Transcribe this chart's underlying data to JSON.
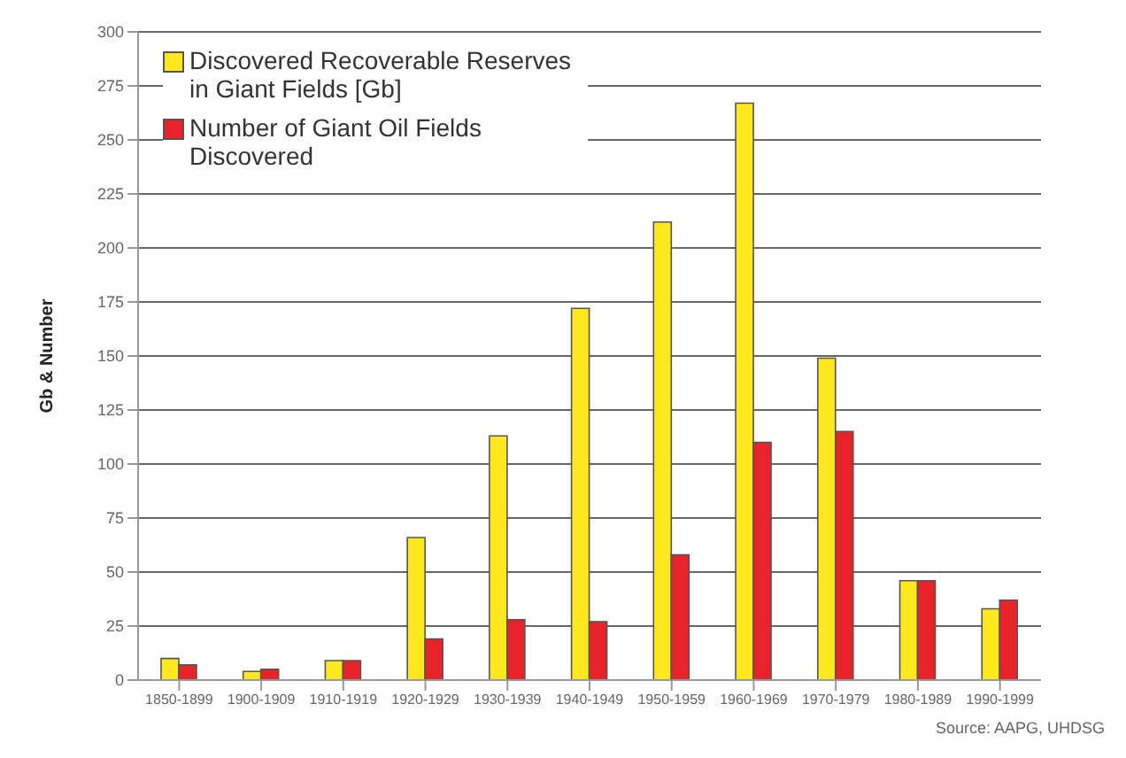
{
  "chart_data": {
    "type": "bar",
    "categories": [
      "1850-1899",
      "1900-1909",
      "1910-1919",
      "1920-1929",
      "1930-1939",
      "1940-1949",
      "1950-1959",
      "1960-1969",
      "1970-1979",
      "1980-1989",
      "1990-1999"
    ],
    "series": [
      {
        "name": "Discovered Recoverable Reserves in Giant Fields [Gb]",
        "color": "#ffe81e",
        "values": [
          10,
          4,
          9,
          66,
          113,
          172,
          212,
          267,
          149,
          46,
          33
        ]
      },
      {
        "name": "Number of Giant Oil Fields Discovered",
        "color": "#e8232a",
        "values": [
          7,
          5,
          9,
          19,
          28,
          27,
          58,
          110,
          115,
          46,
          37
        ]
      }
    ],
    "ylabel": "Gb & Number",
    "ylim": [
      0,
      300
    ],
    "yticks": [
      0,
      25,
      50,
      75,
      100,
      125,
      150,
      175,
      200,
      225,
      250,
      275,
      300
    ],
    "grid": "y",
    "legend": "top left",
    "annotations": [
      "Source: AAPG, UHDSG"
    ]
  }
}
